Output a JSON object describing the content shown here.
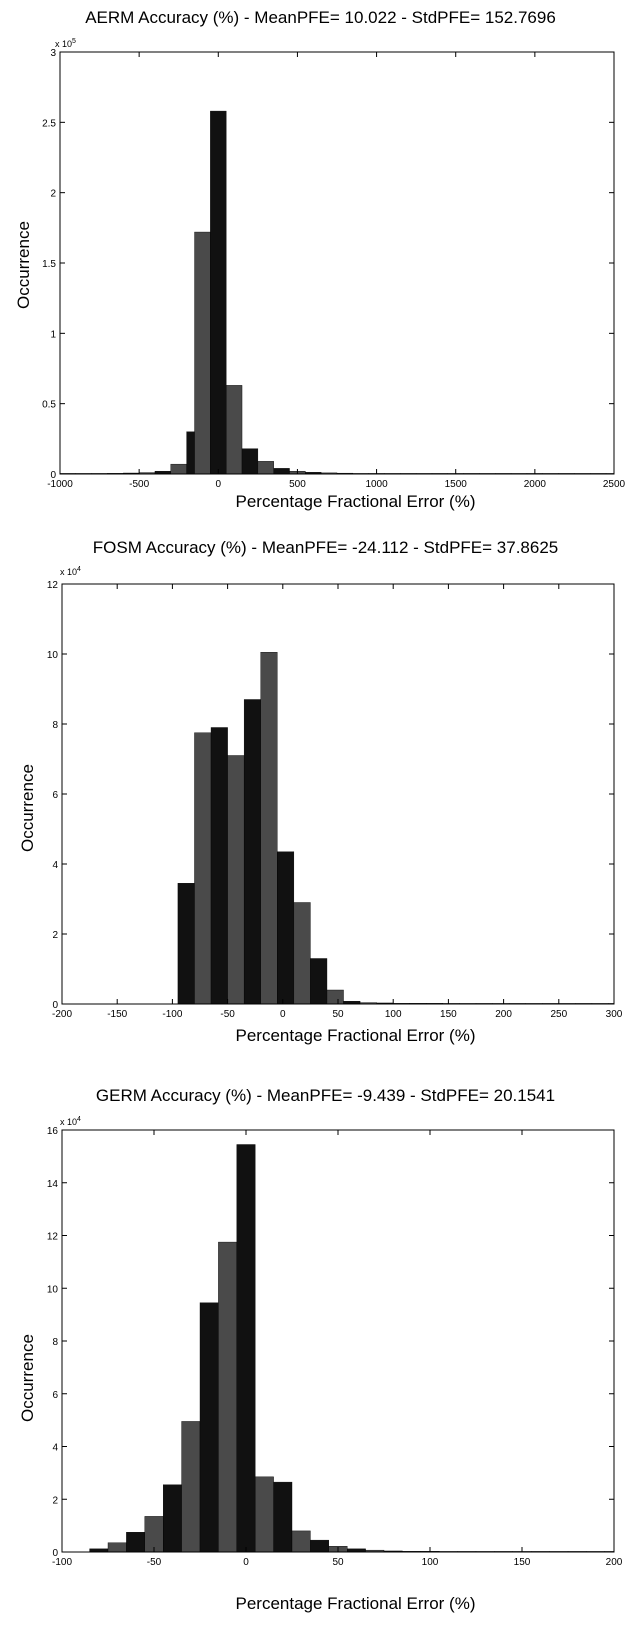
{
  "chart_data": [
    {
      "type": "bar",
      "title": "AERM Accuracy (%) - MeanPFE= 10.022 - StdPFE= 152.7696",
      "xlabel": "Percentage Fractional Error (%)",
      "ylabel": "Occurrence",
      "y_multiplier": "x 10",
      "y_multiplier_exp": "5",
      "xlim": [
        -1000,
        2500
      ],
      "ylim": [
        0,
        3
      ],
      "xticks": [
        -1000,
        -500,
        0,
        500,
        1000,
        1500,
        2000,
        2500
      ],
      "yticks": [
        0,
        0.5,
        1,
        1.5,
        2,
        2.5,
        3
      ],
      "bin_edges": [
        -1000,
        -900,
        -800,
        -700,
        -600,
        -500,
        -400,
        -300,
        -200,
        -150,
        -50,
        50,
        150,
        250,
        350,
        450,
        550,
        650,
        750,
        850,
        950,
        1050,
        1150,
        1250,
        1350,
        1450,
        1550,
        1650,
        1750,
        1850,
        1950,
        2050,
        2150,
        2250,
        2350,
        2450,
        2500
      ],
      "values": [
        0.002,
        0.003,
        0.004,
        0.005,
        0.007,
        0.01,
        0.02,
        0.07,
        0.3,
        1.72,
        2.58,
        0.63,
        0.18,
        0.09,
        0.04,
        0.02,
        0.012,
        0.008,
        0.006,
        0.004,
        0.003,
        0.003,
        0.002,
        0.002,
        0.002,
        0.001,
        0.001,
        0.001,
        0.001,
        0.001,
        0.001,
        0.001,
        0.001,
        0.001,
        0.001,
        0.001
      ],
      "grid": false
    },
    {
      "type": "bar",
      "title": "FOSM  Accuracy (%) - MeanPFE= -24.112 - StdPFE= 37.8625",
      "xlabel": "Percentage Fractional Error (%)",
      "ylabel": "Occurrence",
      "y_multiplier": "x 10",
      "y_multiplier_exp": "4",
      "xlim": [
        -200,
        300
      ],
      "ylim": [
        0,
        12
      ],
      "xticks": [
        -200,
        -150,
        -100,
        -50,
        0,
        50,
        100,
        150,
        200,
        250,
        300
      ],
      "yticks": [
        0,
        2,
        4,
        6,
        8,
        10,
        12
      ],
      "bin_edges": [
        -95,
        -80,
        -65,
        -50,
        -35,
        -20,
        -5,
        10,
        25,
        40,
        55,
        70,
        85,
        100,
        115,
        130,
        145,
        160,
        175,
        190,
        205,
        220,
        235,
        250,
        265,
        280,
        295,
        300
      ],
      "values": [
        3.45,
        7.75,
        7.9,
        7.1,
        8.7,
        10.05,
        4.35,
        2.9,
        1.3,
        0.4,
        0.08,
        0.04,
        0.03,
        0.02,
        0.02,
        0.02,
        0.01,
        0.01,
        0.01,
        0.01,
        0.01,
        0.01,
        0.01,
        0.01,
        0.01,
        0.01,
        0.01
      ],
      "grid": false
    },
    {
      "type": "bar",
      "title": "GERM Accuracy (%) - MeanPFE= -9.439 - StdPFE= 20.1541",
      "xlabel": "Percentage Fractional Error (%)",
      "ylabel": "Occurrence",
      "y_multiplier": "x 10",
      "y_multiplier_exp": "4",
      "xlim": [
        -100,
        200
      ],
      "ylim": [
        0,
        16
      ],
      "xticks": [
        -100,
        -50,
        0,
        50,
        100,
        150,
        200
      ],
      "yticks": [
        0,
        2,
        4,
        6,
        8,
        10,
        12,
        14,
        16
      ],
      "bin_edges": [
        -85,
        -75,
        -65,
        -55,
        -45,
        -35,
        -25,
        -15,
        -5,
        5,
        15,
        25,
        35,
        45,
        55,
        65,
        75,
        85,
        95,
        105,
        115,
        125,
        135,
        145,
        155,
        165,
        175,
        185,
        195,
        200
      ],
      "values": [
        0.12,
        0.35,
        0.75,
        1.35,
        2.55,
        4.95,
        9.45,
        11.75,
        15.45,
        2.85,
        2.65,
        0.8,
        0.45,
        0.22,
        0.12,
        0.07,
        0.04,
        0.03,
        0.03,
        0.02,
        0.02,
        0.02,
        0.02,
        0.01,
        0.01,
        0.01,
        0.01,
        0.01,
        0.01
      ],
      "grid": false
    }
  ]
}
